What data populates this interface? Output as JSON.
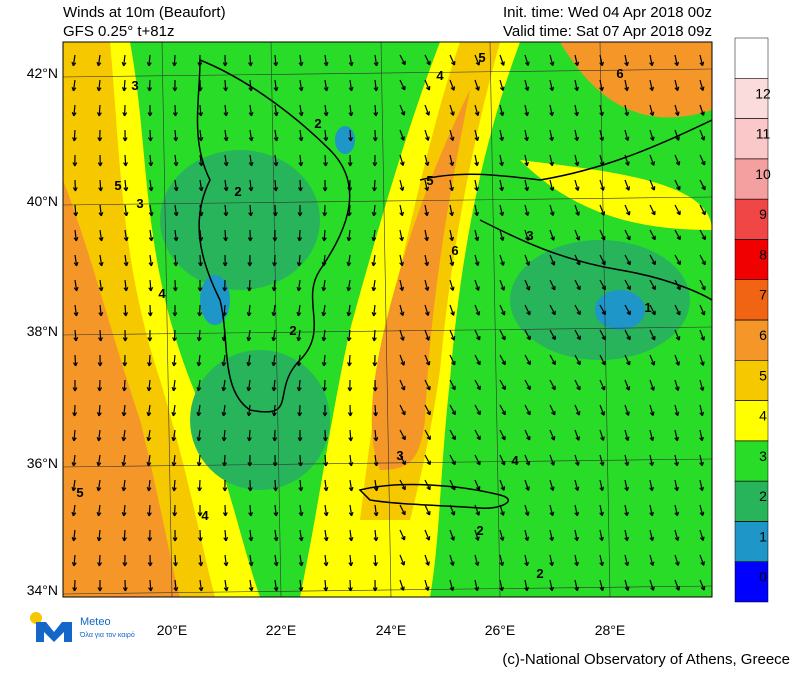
{
  "header": {
    "title": "Winds at 10m (Beaufort)",
    "model": "GFS 0.25° t+81z",
    "init_time": "Init. time: Wed 04 Apr 2018 00z",
    "valid_time": "Valid time: Sat 07 Apr 2018 09z"
  },
  "map": {
    "lat_labels": [
      "42°N",
      "40°N",
      "38°N",
      "36°N",
      "34°N"
    ],
    "lon_labels": [
      "20°E",
      "22°E",
      "24°E",
      "26°E",
      "28°E"
    ],
    "contour_labels": [
      "3",
      "5",
      "2",
      "4",
      "6",
      "5",
      "2",
      "3",
      "4",
      "6",
      "5",
      "2",
      "3",
      "4",
      "2",
      "1",
      "5",
      "4",
      "3",
      "2"
    ]
  },
  "colorbar": {
    "levels": [
      0,
      1,
      2,
      3,
      4,
      5,
      6,
      7,
      8,
      9,
      10,
      11,
      12
    ],
    "colors": [
      "#0000ff",
      "#1e96c8",
      "#28b45a",
      "#28dc28",
      "#ffff00",
      "#f5c800",
      "#f59628",
      "#f06414",
      "#f00000",
      "#f04646",
      "#f5a0a0",
      "#fac8c8",
      "#fadcdc",
      "#ffffff"
    ]
  },
  "logo": {
    "name": "Meteo",
    "tagline": "Όλα για τον καιρό"
  },
  "footer": {
    "credit": "(c)-National Observatory of Athens, Greece"
  }
}
